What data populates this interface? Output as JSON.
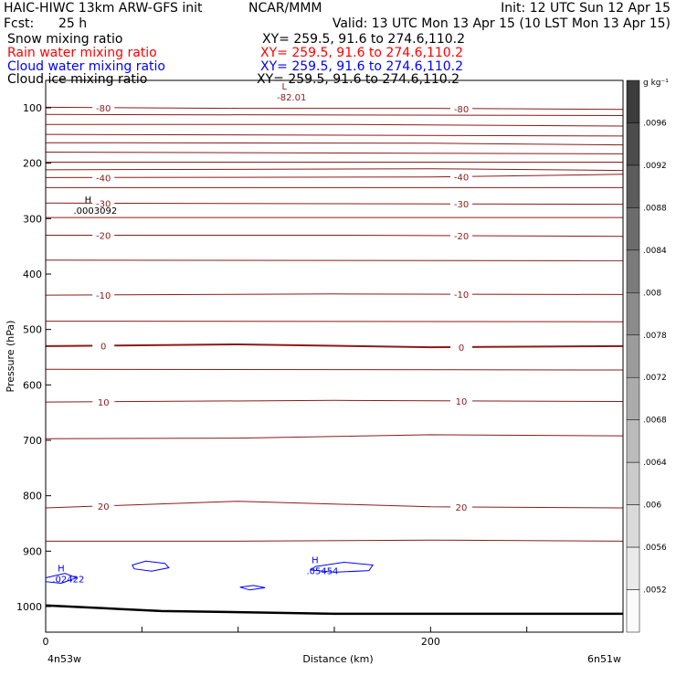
{
  "header": {
    "model": "HAIC-HIWC 13km ARW-GFS init",
    "center": "NCAR/MMM",
    "init": "Init: 12 UTC Sun 12 Apr 15",
    "fcst_label": "Fcst:",
    "fcst_value": "25 h",
    "valid": "Valid: 13 UTC Mon 13 Apr 15 (10 LST Mon 13 Apr 15)"
  },
  "fields": [
    {
      "name": "Snow mixing ratio",
      "xy": "XY= 259.5, 91.6 to 274.6,110.2",
      "color": "#000000"
    },
    {
      "name": "Rain water mixing ratio",
      "xy": "XY= 259.5, 91.6 to 274.6,110.2",
      "color": "#ff0000"
    },
    {
      "name": "Cloud water mixing ratio",
      "xy": "XY= 259.5, 91.6 to 274.6,110.2",
      "color": "#0000ff"
    },
    {
      "name": "Cloud ice mixing ratio",
      "xy": "XY= 259.5, 91.6 to 274.6,110.2",
      "color": "#000000"
    }
  ],
  "colors": {
    "temperature_contour": "#8b1a1a",
    "cloud_water_contour": "#0000ff",
    "terrain": "#000000"
  },
  "chart_data": {
    "type": "cross-section",
    "xlabel": "Distance (km)",
    "ylabel": "Pressure (hPa)",
    "xlim": [
      0,
      300
    ],
    "ylim": [
      1050,
      50
    ],
    "x_ticks": [
      0,
      200
    ],
    "y_ticks": [
      100,
      200,
      300,
      400,
      500,
      600,
      700,
      800,
      900,
      1000
    ],
    "left_endpoint": "4n53w",
    "right_endpoint": "6n51w",
    "temperature_contours": [
      {
        "level": -80,
        "label": "-80",
        "pts": [
          [
            0,
            99
          ],
          [
            100,
            101
          ],
          [
            200,
            101
          ],
          [
            300,
            103
          ]
        ]
      },
      {
        "level": -75,
        "label": "",
        "pts": [
          [
            0,
            112
          ],
          [
            300,
            114
          ]
        ]
      },
      {
        "level": -70,
        "label": "",
        "pts": [
          [
            0,
            130
          ],
          [
            150,
            130
          ],
          [
            300,
            133
          ]
        ]
      },
      {
        "level": -65,
        "label": "",
        "pts": [
          [
            0,
            148
          ],
          [
            300,
            151
          ]
        ]
      },
      {
        "level": -60,
        "label": "",
        "pts": [
          [
            0,
            163
          ],
          [
            200,
            164
          ],
          [
            300,
            167
          ]
        ]
      },
      {
        "level": -55,
        "label": "",
        "pts": [
          [
            0,
            180
          ],
          [
            300,
            183
          ]
        ]
      },
      {
        "level": -50,
        "label": "",
        "pts": [
          [
            0,
            198
          ],
          [
            300,
            198
          ]
        ]
      },
      {
        "level": -45,
        "label": "",
        "pts": [
          [
            0,
            212
          ],
          [
            200,
            210
          ],
          [
            300,
            213
          ]
        ]
      },
      {
        "level": -40,
        "label": "-40",
        "pts": [
          [
            0,
            226
          ],
          [
            200,
            225
          ],
          [
            300,
            220
          ]
        ]
      },
      {
        "level": -35,
        "label": "",
        "pts": [
          [
            0,
            244
          ],
          [
            300,
            244
          ]
        ]
      },
      {
        "level": -30,
        "label": "-30",
        "pts": [
          [
            0,
            272
          ],
          [
            150,
            273
          ],
          [
            300,
            274
          ]
        ]
      },
      {
        "level": -25,
        "label": "",
        "pts": [
          [
            0,
            298
          ],
          [
            300,
            298
          ]
        ]
      },
      {
        "level": -20,
        "label": "-20",
        "pts": [
          [
            0,
            330
          ],
          [
            150,
            330
          ],
          [
            300,
            332
          ]
        ]
      },
      {
        "level": -15,
        "label": "",
        "pts": [
          [
            0,
            375
          ],
          [
            300,
            376
          ]
        ]
      },
      {
        "level": -10,
        "label": "-10",
        "pts": [
          [
            0,
            438
          ],
          [
            150,
            436
          ],
          [
            300,
            437
          ]
        ]
      },
      {
        "level": -5,
        "label": "",
        "pts": [
          [
            0,
            485
          ],
          [
            300,
            486
          ]
        ]
      },
      {
        "level": 0,
        "label": "0",
        "pts": [
          [
            0,
            530
          ],
          [
            100,
            527
          ],
          [
            200,
            532
          ],
          [
            300,
            530
          ]
        ]
      },
      {
        "level": 5,
        "label": "",
        "pts": [
          [
            0,
            572
          ],
          [
            300,
            573
          ]
        ]
      },
      {
        "level": 10,
        "label": "10",
        "pts": [
          [
            0,
            631
          ],
          [
            150,
            628
          ],
          [
            300,
            630
          ]
        ]
      },
      {
        "level": 15,
        "label": "",
        "pts": [
          [
            0,
            697
          ],
          [
            100,
            696
          ],
          [
            200,
            690
          ],
          [
            300,
            692
          ]
        ]
      },
      {
        "level": 20,
        "label": "20",
        "pts": [
          [
            0,
            822
          ],
          [
            100,
            810
          ],
          [
            200,
            820
          ],
          [
            300,
            822
          ]
        ]
      },
      {
        "level": 25,
        "label": "",
        "pts": [
          [
            0,
            882
          ],
          [
            100,
            882
          ],
          [
            200,
            880
          ],
          [
            300,
            882
          ]
        ]
      }
    ],
    "extrema": [
      {
        "type": "L",
        "value": "-82.01"
      },
      {
        "type": "H",
        "value": ".0003092"
      },
      {
        "type": "H",
        "value": ".02422"
      },
      {
        "type": "H",
        "value": ".05454"
      }
    ],
    "colorbar": {
      "unit": "g kg⁻¹",
      "labels": [
        ".0096",
        ".0092",
        ".0088",
        ".0084",
        ".008",
        ".0078",
        ".0072",
        ".0068",
        ".0064",
        ".006",
        ".0056",
        ".0052"
      ]
    }
  }
}
